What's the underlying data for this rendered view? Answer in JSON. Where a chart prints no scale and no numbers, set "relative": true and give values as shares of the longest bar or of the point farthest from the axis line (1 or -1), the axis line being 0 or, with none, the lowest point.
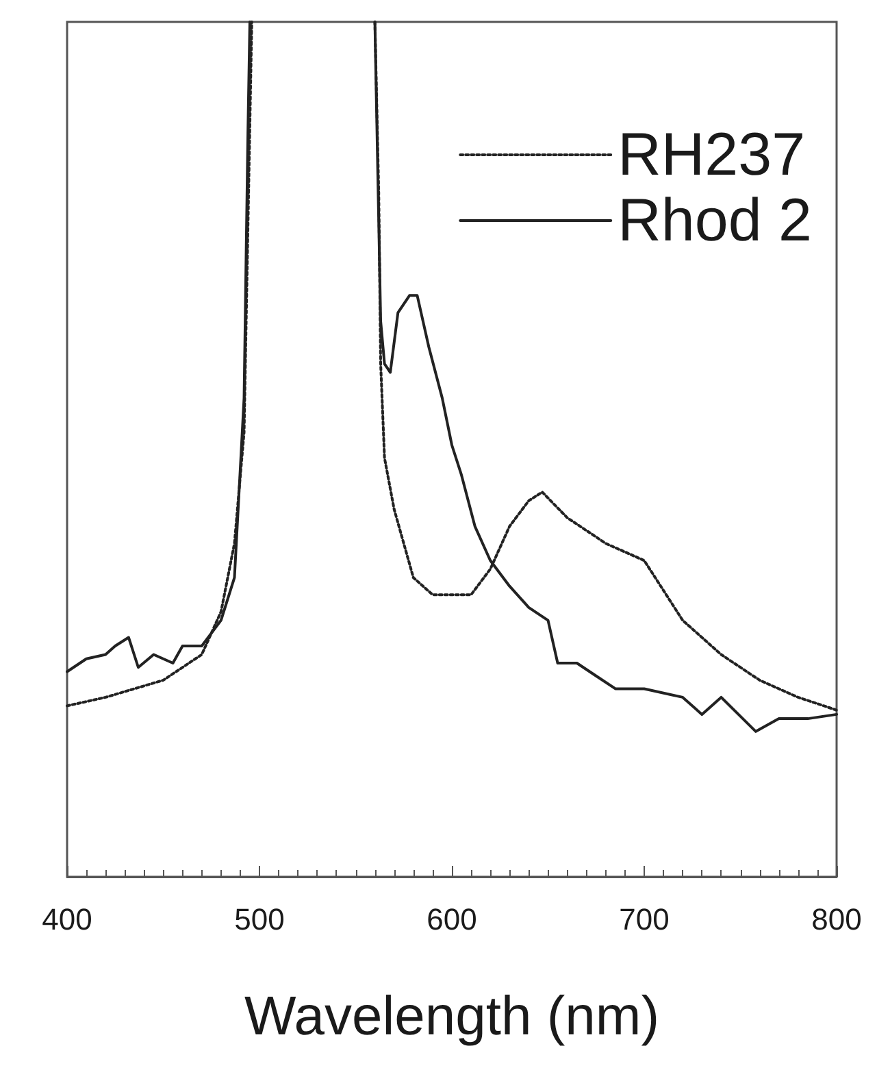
{
  "chart_data": {
    "type": "line",
    "xlabel": "Wavelength (nm)",
    "relative": true,
    "xlim": [
      400,
      800
    ],
    "xticks": [
      400,
      500,
      600,
      700,
      800
    ],
    "tick_labels": "x",
    "grid": false,
    "legend": "top right",
    "marker": "none",
    "series": [
      {
        "name": "RH237",
        "color": "#222222",
        "line_style": "dotted",
        "x": [
          400,
          420,
          450,
          470,
          480,
          487,
          492,
          495,
          496,
          528,
          560,
          562,
          563,
          565,
          570,
          580,
          590,
          600,
          610,
          620,
          630,
          640,
          647,
          660,
          680,
          700,
          720,
          740,
          760,
          780,
          800
        ],
        "values": [
          0.2,
          0.21,
          0.23,
          0.26,
          0.31,
          0.39,
          0.52,
          0.88,
          1.0,
          null,
          1.0,
          0.8,
          0.6,
          0.49,
          0.43,
          0.35,
          0.33,
          0.33,
          0.33,
          0.36,
          0.41,
          0.44,
          0.45,
          0.42,
          0.39,
          0.37,
          0.3,
          0.26,
          0.23,
          0.21,
          0.195
        ]
      },
      {
        "name": "Rhod 2",
        "color": "#222222",
        "line_style": "solid",
        "x": [
          400,
          410,
          420,
          425,
          432,
          437,
          445,
          455,
          460,
          470,
          480,
          487,
          492,
          494,
          495,
          528,
          560,
          563,
          565,
          568,
          572,
          578,
          582,
          588,
          595,
          600,
          605,
          612,
          620,
          630,
          640,
          650,
          655,
          665,
          675,
          685,
          700,
          720,
          730,
          740,
          758,
          770,
          785,
          800
        ],
        "values": [
          0.24,
          0.255,
          0.26,
          0.27,
          0.28,
          0.245,
          0.26,
          0.25,
          0.27,
          0.27,
          0.3,
          0.35,
          0.56,
          0.87,
          1.0,
          null,
          1.0,
          0.65,
          0.6,
          0.59,
          0.66,
          0.68,
          0.68,
          0.62,
          0.56,
          0.505,
          0.47,
          0.41,
          0.37,
          0.34,
          0.315,
          0.3,
          0.25,
          0.25,
          0.235,
          0.22,
          0.22,
          0.21,
          0.19,
          0.21,
          0.17,
          0.185,
          0.185,
          0.19
        ]
      }
    ]
  }
}
